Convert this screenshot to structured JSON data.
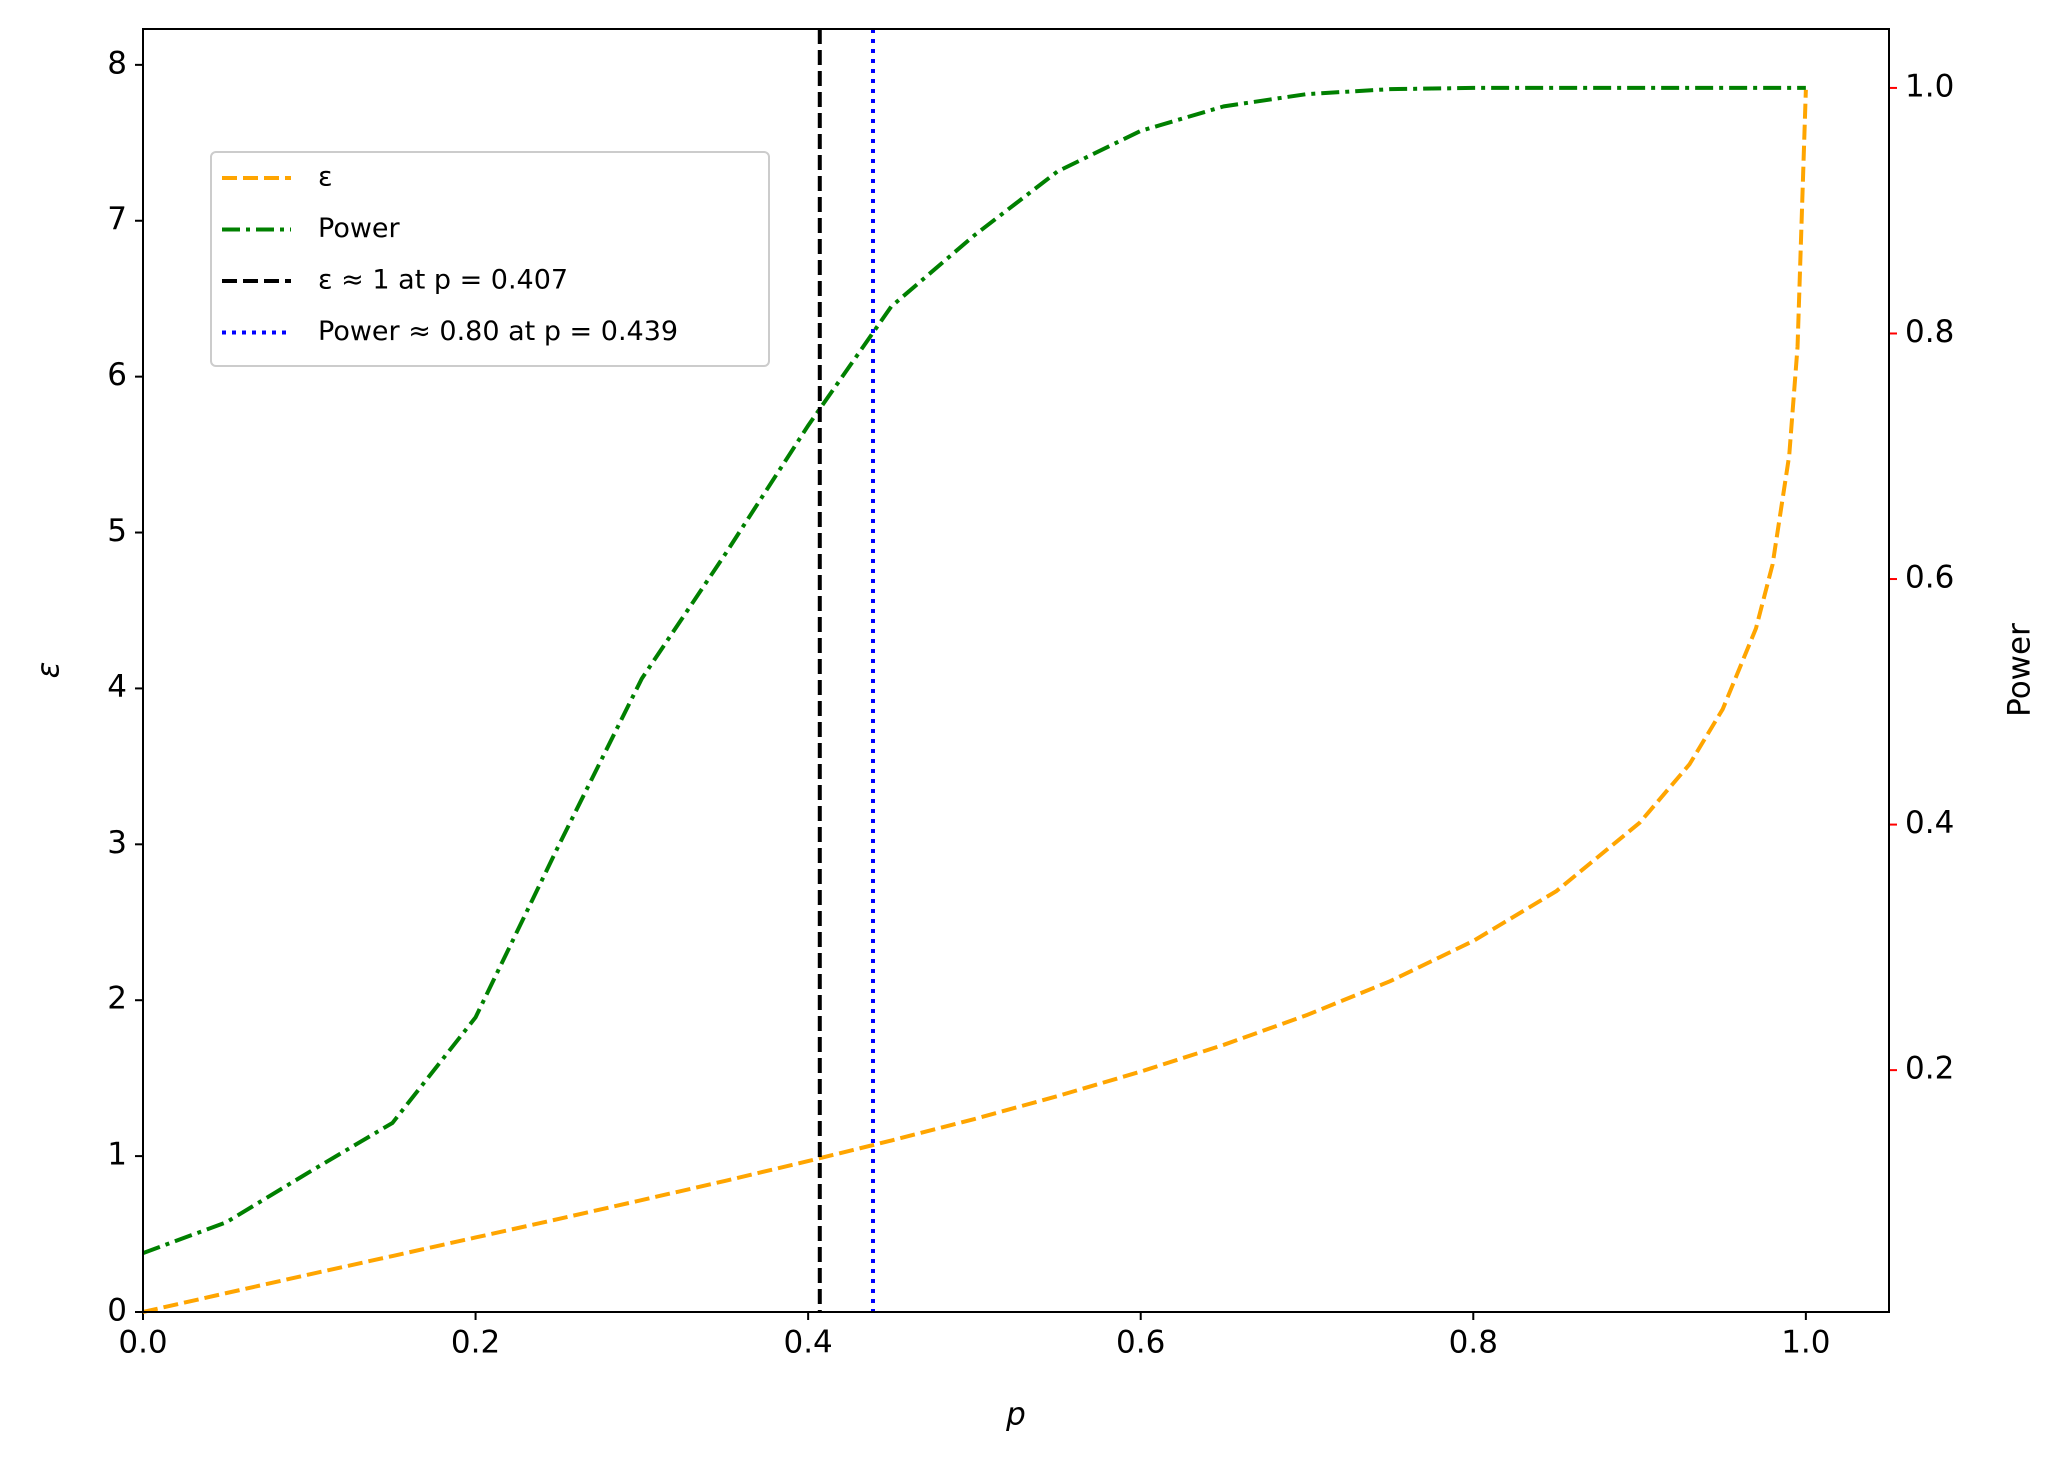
{
  "chart_data": {
    "type": "line",
    "x": [
      0,
      0.05,
      0.1,
      0.15,
      0.2,
      0.25,
      0.3,
      0.35,
      0.4,
      0.45,
      0.5,
      0.55,
      0.6,
      0.65,
      0.7,
      0.75,
      0.8,
      0.85,
      0.9,
      0.93,
      0.95,
      0.97,
      0.98,
      0.99,
      0.995,
      1.0
    ],
    "series": [
      {
        "name": "ε",
        "color": "#ffa500",
        "style": "dashed",
        "axis": "y",
        "values": [
          0,
          0.121,
          0.241,
          0.359,
          0.478,
          0.597,
          0.718,
          0.841,
          0.968,
          1.1,
          1.238,
          1.385,
          1.542,
          1.714,
          1.905,
          2.122,
          2.38,
          2.7,
          3.138,
          3.513,
          3.867,
          4.385,
          4.796,
          5.495,
          6.191,
          7.84
        ]
      },
      {
        "name": "Power",
        "color": "#008000",
        "style": "dashdot",
        "axis": "y2",
        "values": [
          0.051,
          0.076,
          0.117,
          0.157,
          0.243,
          0.383,
          0.519,
          0.62,
          0.725,
          0.822,
          0.88,
          0.932,
          0.965,
          0.985,
          0.995,
          0.999,
          1,
          1,
          1,
          1,
          1,
          1,
          1,
          1,
          1,
          1
        ]
      }
    ],
    "vlines": [
      {
        "x": 0.407,
        "color": "#000000",
        "style": "dashed",
        "label": "ε ≈ 1 at p = 0.407"
      },
      {
        "x": 0.439,
        "color": "#0000ff",
        "style": "dotted",
        "label": "Power ≈ 0.80 at p = 0.439"
      }
    ],
    "x_label": "p",
    "y_label": "ε",
    "y2_label": "Power",
    "y2_color": "#ff0000",
    "xlim": [
      0,
      1.05
    ],
    "xticks": [
      {
        "value": 0,
        "label": "0.0"
      },
      0.2,
      0.4,
      0.6,
      0.8,
      {
        "value": 1,
        "label": "1.0"
      }
    ],
    "ylim": [
      0,
      8.23
    ],
    "yticks": [
      0,
      1,
      2,
      3,
      4,
      5,
      6,
      7,
      8
    ],
    "y2lim": [
      0.003,
      1.048
    ],
    "y2ticks": [
      0.2,
      0.4,
      0.6,
      0.8,
      {
        "value": 1,
        "label": "1.0"
      }
    ],
    "legend": "upper left"
  }
}
